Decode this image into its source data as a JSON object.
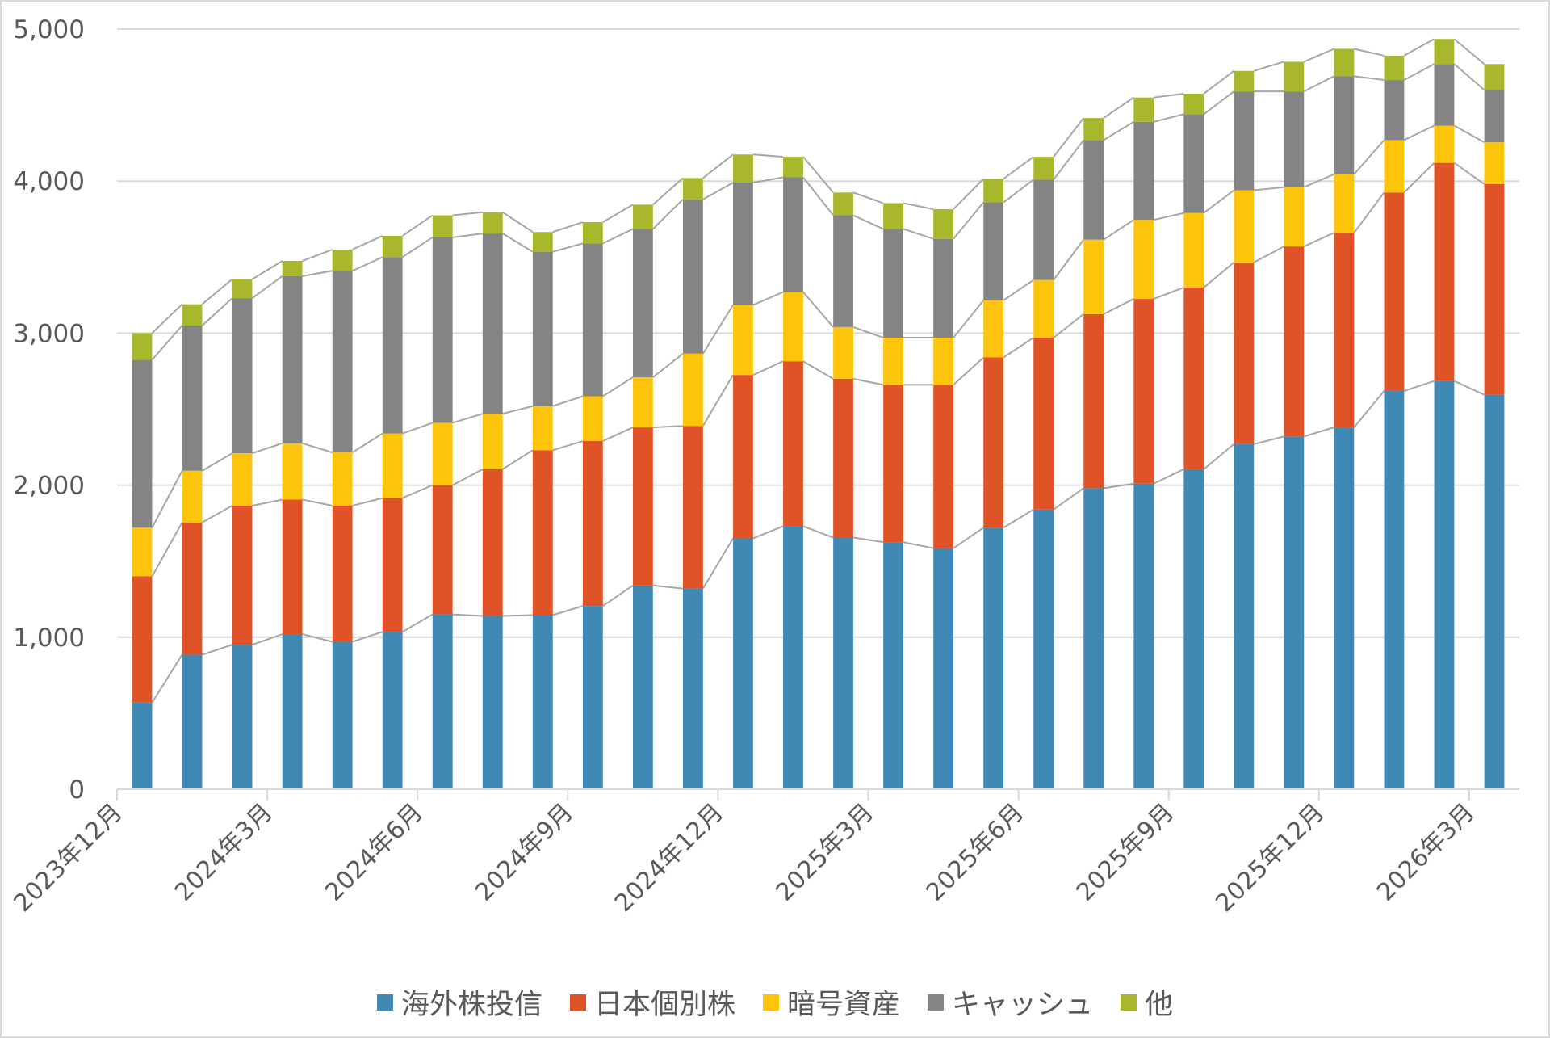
{
  "chart_data": {
    "type": "bar",
    "stacked": true,
    "title": "",
    "xlabel": "",
    "ylabel": "",
    "ylim": [
      0,
      5000
    ],
    "yticks": [
      "0",
      "1,000",
      "2,000",
      "3,000",
      "4,000",
      "5,000"
    ],
    "ytick_values": [
      0,
      1000,
      2000,
      3000,
      4000,
      5000
    ],
    "grid": true,
    "series_lines": true,
    "legend_position": "bottom",
    "categories": [
      "2023年12月",
      "2024年1月",
      "2024年2月",
      "2024年3月",
      "2024年4月",
      "2024年5月",
      "2024年6月",
      "2024年7月",
      "2024年8月",
      "2024年9月",
      "2024年10月",
      "2024年11月",
      "2024年12月",
      "2025年1月",
      "2025年2月",
      "2025年3月",
      "2025年4月",
      "2025年5月",
      "2025年6月",
      "2025年7月",
      "2025年8月",
      "2025年9月",
      "2025年10月",
      "2025年11月",
      "2025年12月",
      "2026年1月",
      "2026年2月",
      "2026年3月"
    ],
    "xtick_labels": [
      "2023年12月",
      "2024年3月",
      "2024年6月",
      "2024年9月",
      "2024年12月",
      "2025年3月",
      "2025年6月",
      "2025年9月",
      "2025年12月",
      "2026年3月"
    ],
    "xtick_every": 3,
    "series": [
      {
        "name": "海外株投信",
        "color": "#4189b5",
        "values": [
          570,
          885,
          950,
          1020,
          970,
          1035,
          1150,
          1140,
          1145,
          1205,
          1340,
          1320,
          1650,
          1730,
          1655,
          1625,
          1585,
          1720,
          1840,
          1980,
          2010,
          2105,
          2270,
          2320,
          2380,
          2620,
          2685,
          2595
        ]
      },
      {
        "name": "日本個別株",
        "color": "#e05326",
        "values": [
          830,
          870,
          915,
          885,
          895,
          880,
          850,
          965,
          1085,
          1085,
          1040,
          1070,
          1075,
          1085,
          1045,
          1035,
          1075,
          1120,
          1130,
          1145,
          1215,
          1195,
          1195,
          1250,
          1280,
          1305,
          1435,
          1385
        ]
      },
      {
        "name": "暗号資産",
        "color": "#fdc40c",
        "values": [
          320,
          340,
          345,
          370,
          350,
          425,
          410,
          365,
          290,
          295,
          330,
          475,
          460,
          455,
          340,
          310,
          310,
          375,
          380,
          490,
          520,
          490,
          475,
          390,
          385,
          345,
          245,
          275
        ]
      },
      {
        "name": "キャッシュ",
        "color": "#848484",
        "values": [
          1105,
          955,
          1020,
          1100,
          1195,
          1160,
          1220,
          1185,
          1015,
          1005,
          975,
          1015,
          805,
          755,
          735,
          715,
          650,
          645,
          660,
          655,
          645,
          650,
          650,
          630,
          645,
          395,
          405,
          345
        ]
      },
      {
        "name": "他",
        "color": "#a8b72b",
        "values": [
          175,
          140,
          125,
          100,
          140,
          140,
          145,
          140,
          130,
          140,
          160,
          140,
          185,
          135,
          150,
          170,
          195,
          155,
          150,
          145,
          160,
          135,
          135,
          195,
          180,
          160,
          165,
          170
        ]
      }
    ]
  },
  "colors": {
    "gridline": "#d9d9d9",
    "series_line": "#a6a6a6",
    "axis_text": "#595959"
  }
}
